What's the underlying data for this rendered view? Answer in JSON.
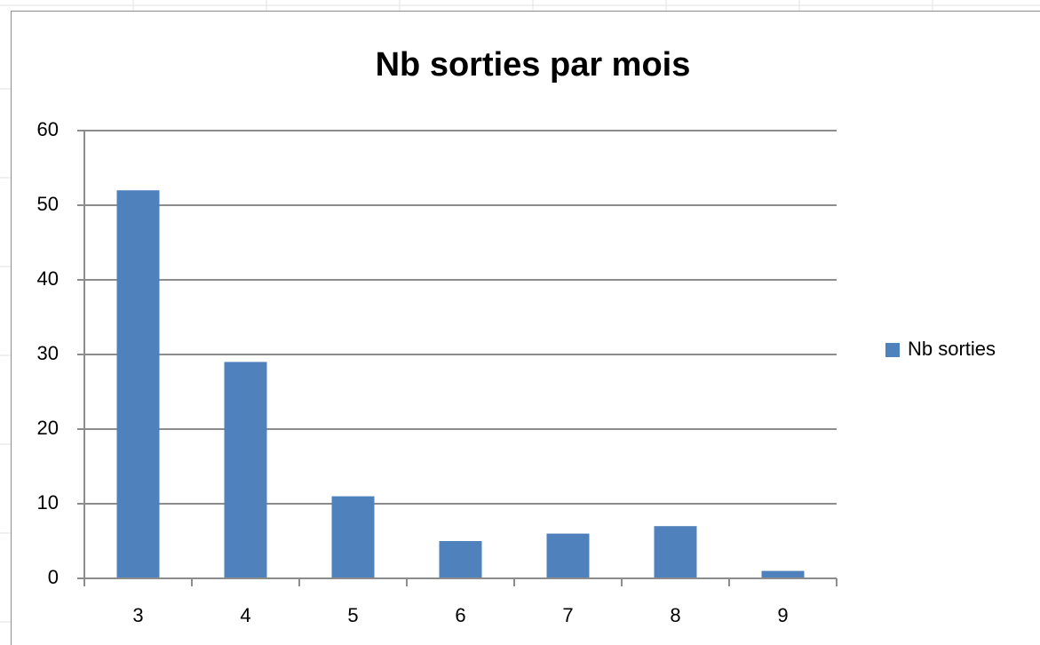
{
  "chart_data": {
    "type": "bar",
    "title": "Nb sorties par mois",
    "categories": [
      "3",
      "4",
      "5",
      "6",
      "7",
      "8",
      "9"
    ],
    "series": [
      {
        "name": "Nb sorties",
        "color": "#4f81bd",
        "values": [
          52,
          29,
          11,
          5,
          6,
          7,
          1
        ]
      }
    ],
    "ylim": [
      0,
      60
    ],
    "yticks": [
      0,
      10,
      20,
      30,
      40,
      50,
      60
    ],
    "grid": true,
    "legend": "right"
  }
}
